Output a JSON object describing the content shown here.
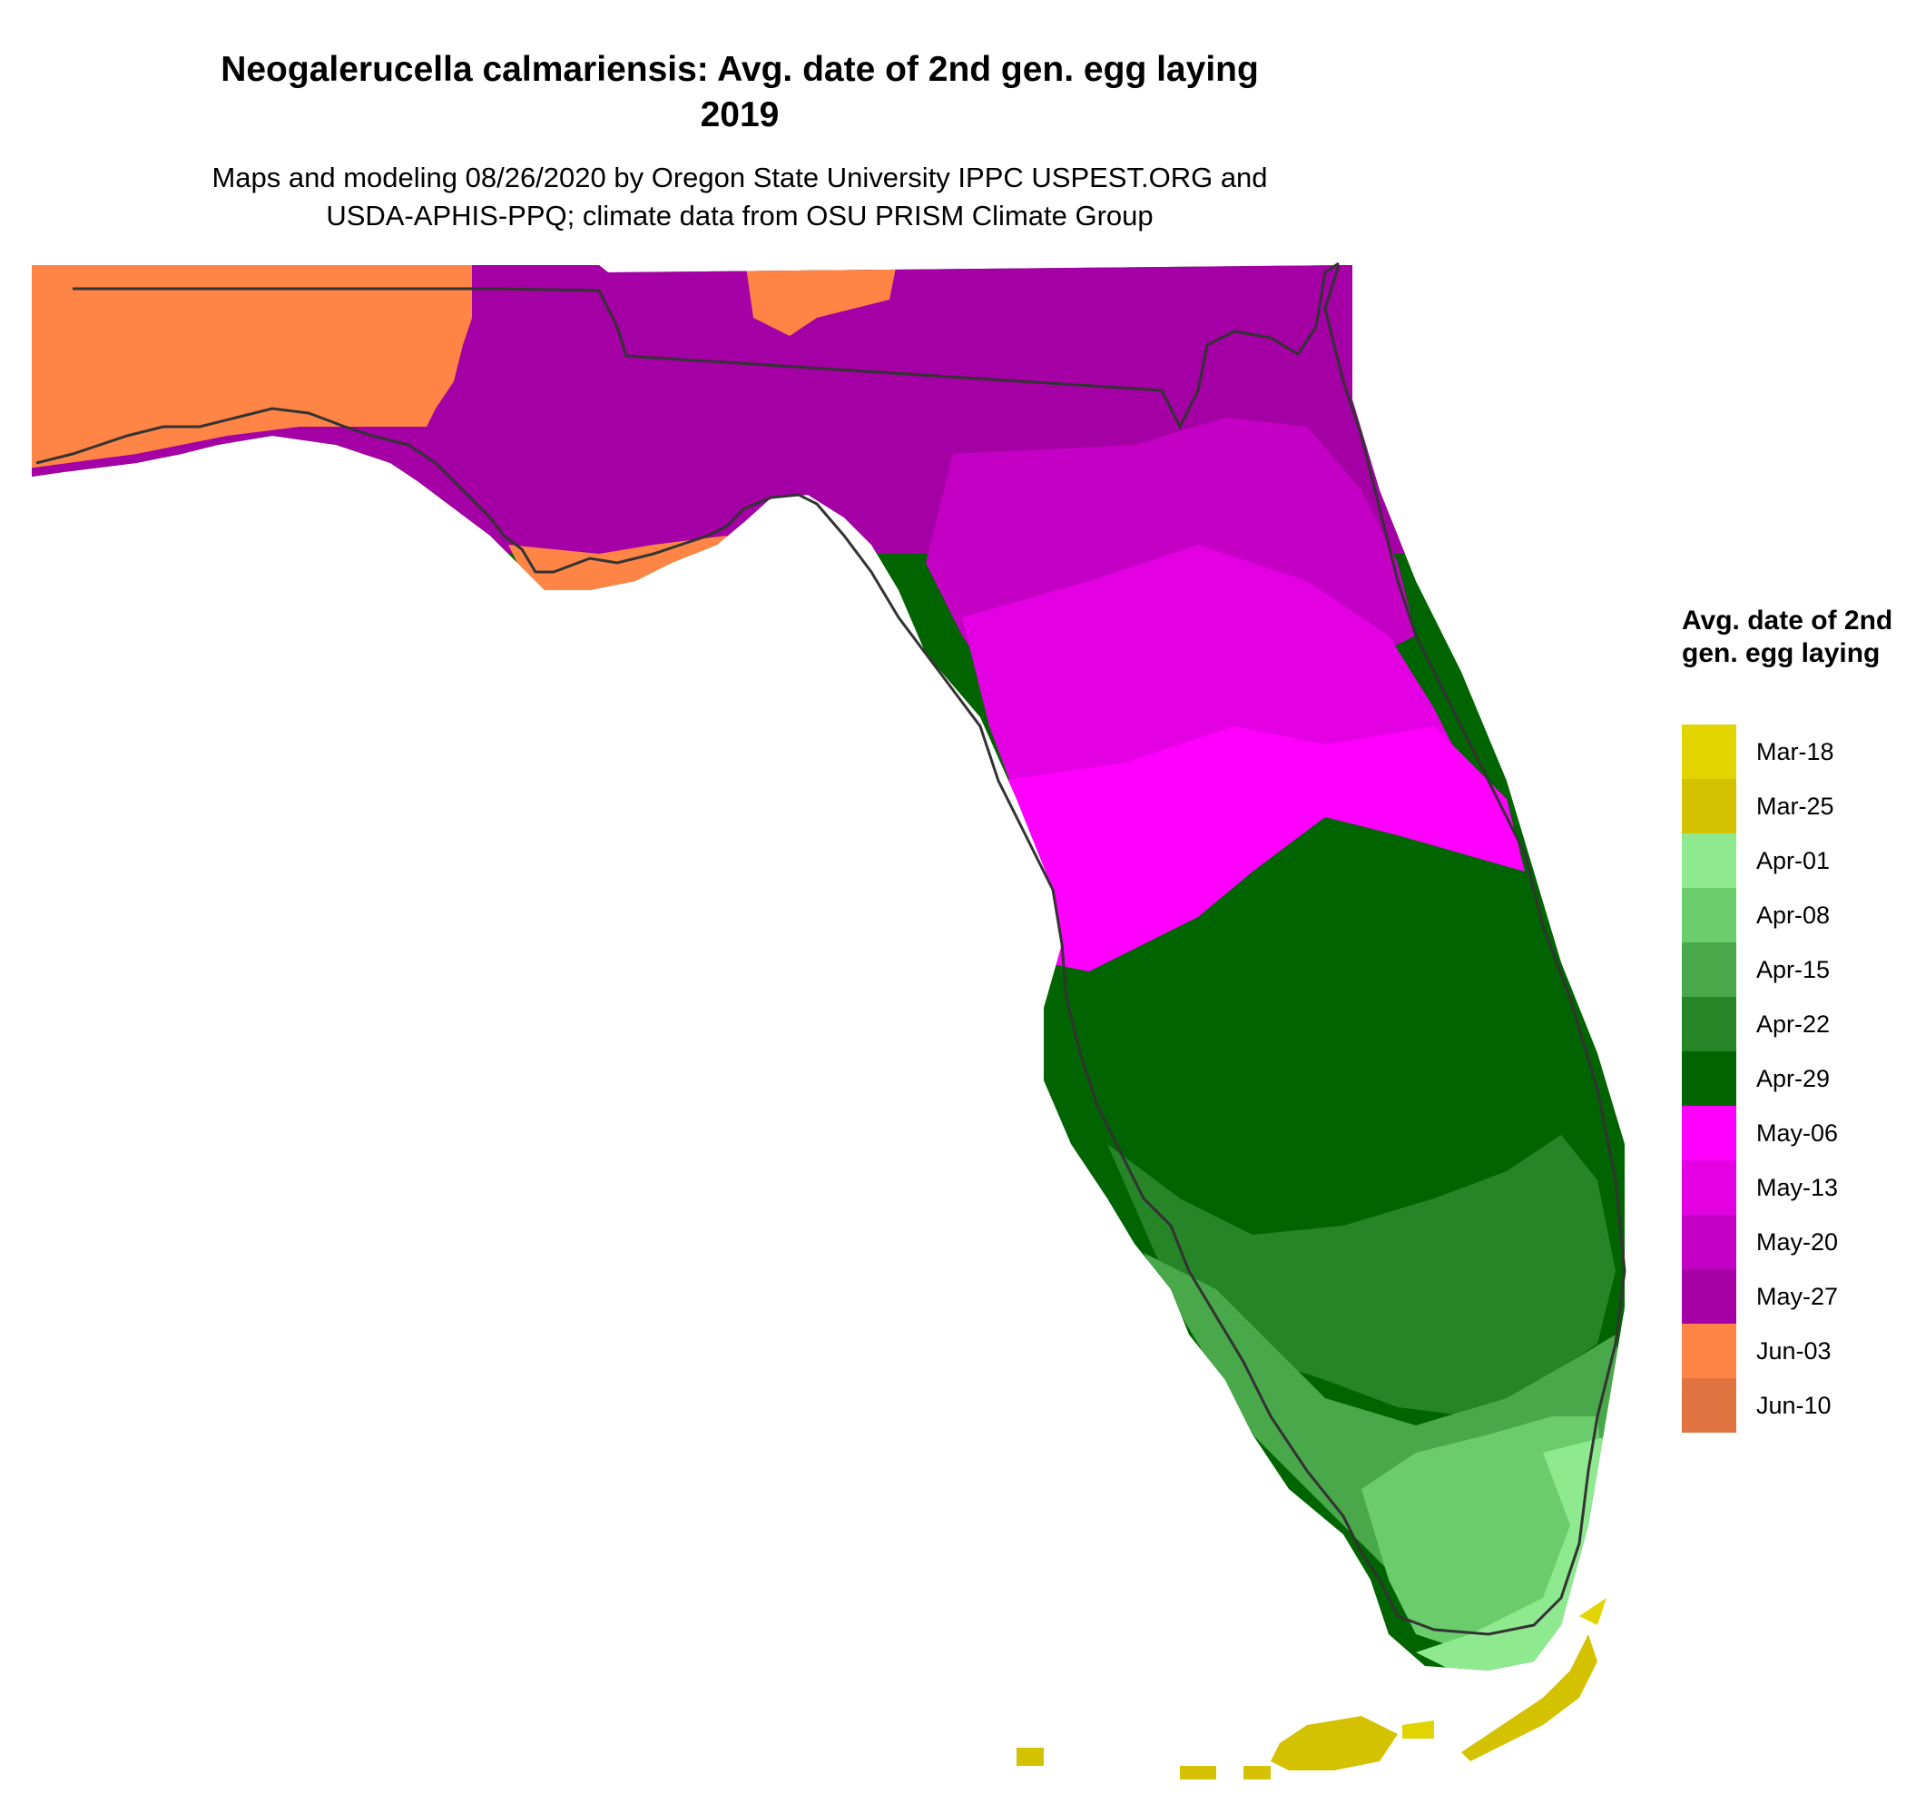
{
  "title_line1": "Neogalerucella calmariensis: Avg. date of 2nd gen. egg laying",
  "title_line2": "2019",
  "subtitle_line1": "Maps and modeling 08/26/2020 by Oregon State University IPPC USPEST.ORG and",
  "subtitle_line2": "USDA-APHIS-PPQ; climate data from OSU PRISM Climate Group",
  "legend": {
    "title": "Avg. date of 2nd gen. egg laying",
    "items": [
      {
        "label": "Mar-18",
        "color": "#e2d400"
      },
      {
        "label": "Mar-25",
        "color": "#d4c200"
      },
      {
        "label": "Apr-01",
        "color": "#8fea8f"
      },
      {
        "label": "Apr-08",
        "color": "#6bcc6b"
      },
      {
        "label": "Apr-15",
        "color": "#49a849"
      },
      {
        "label": "Apr-22",
        "color": "#268526"
      },
      {
        "label": "Apr-29",
        "color": "#006400"
      },
      {
        "label": "May-06",
        "color": "#ff00ff"
      },
      {
        "label": "May-13",
        "color": "#e300e3"
      },
      {
        "label": "May-20",
        "color": "#c400c4"
      },
      {
        "label": "May-27",
        "color": "#a500a5"
      },
      {
        "label": "Jun-03",
        "color": "#ff8547"
      },
      {
        "label": "Jun-10",
        "color": "#e07440"
      }
    ]
  }
}
